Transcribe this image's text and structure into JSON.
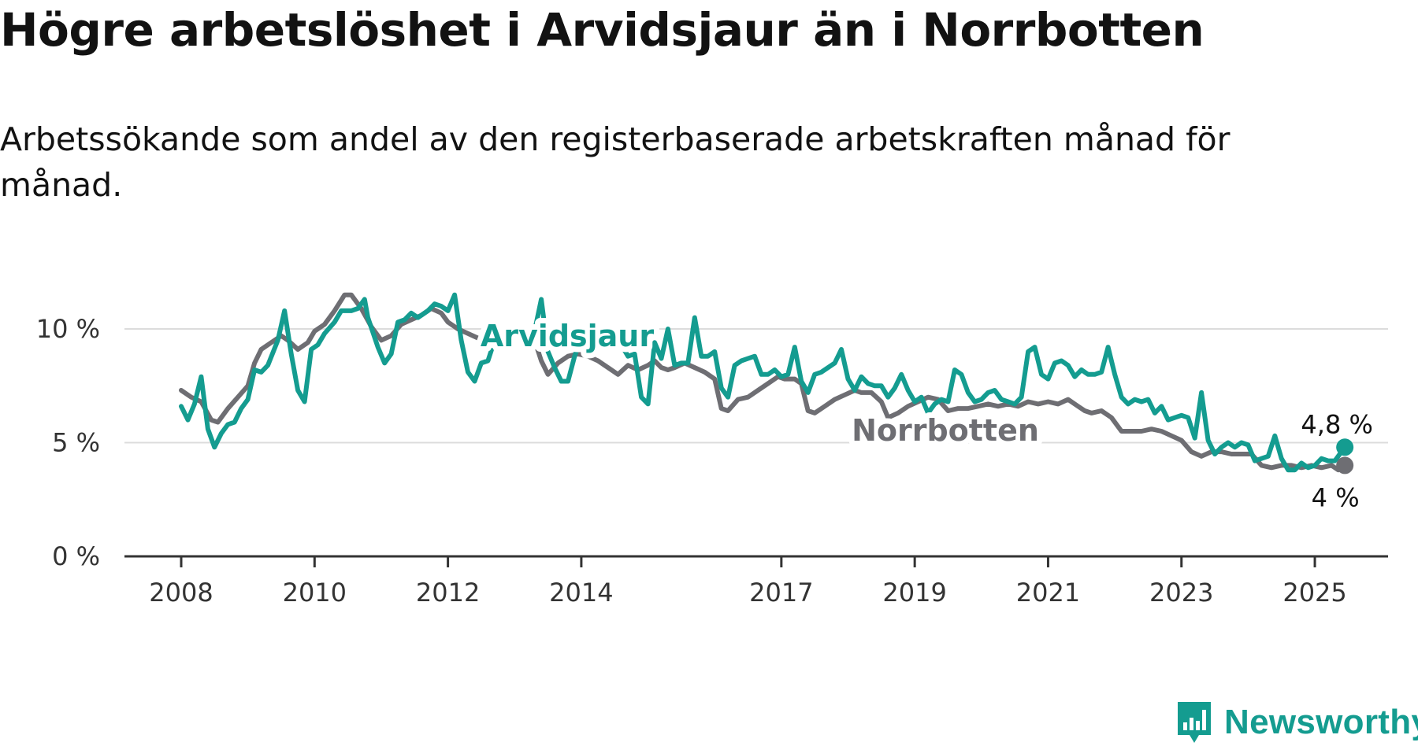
{
  "header": {
    "title": "Högre arbetslöshet i Arvidsjaur än i Norrbotten",
    "subtitle": "Arbetssökande som andel av den registerbaserade arbetskraften månad för månad."
  },
  "brand": {
    "logo_text": "Newsworthy",
    "color": "#149c90"
  },
  "chart_data": {
    "type": "line",
    "title": "Högre arbetslöshet i Arvidsjaur än i Norrbotten",
    "subtitle": "Arbetssökande som andel av den registerbaserade arbetskraften månad för månad.",
    "xlabel": "",
    "ylabel": "",
    "xlim": [
      2008,
      2025.5
    ],
    "ylim": [
      0,
      12
    ],
    "x_ticks": [
      2008,
      2010,
      2012,
      2014,
      2017,
      2019,
      2021,
      2023,
      2025
    ],
    "y_ticks": [
      0,
      5,
      10
    ],
    "y_tick_labels": [
      "0 %",
      "5 %",
      "10 %"
    ],
    "grid": true,
    "series": [
      {
        "name": "Arvidsjaur",
        "color": "#149c90",
        "end_label": "4,8 %",
        "points": [
          [
            2008.0,
            6.6
          ],
          [
            2008.1,
            6.0
          ],
          [
            2008.2,
            6.7
          ],
          [
            2008.3,
            7.9
          ],
          [
            2008.4,
            5.6
          ],
          [
            2008.5,
            4.8
          ],
          [
            2008.6,
            5.4
          ],
          [
            2008.7,
            5.8
          ],
          [
            2008.8,
            5.9
          ],
          [
            2008.9,
            6.5
          ],
          [
            2009.0,
            6.9
          ],
          [
            2009.1,
            8.2
          ],
          [
            2009.2,
            8.1
          ],
          [
            2009.3,
            8.4
          ],
          [
            2009.45,
            9.5
          ],
          [
            2009.55,
            10.8
          ],
          [
            2009.65,
            8.9
          ],
          [
            2009.75,
            7.3
          ],
          [
            2009.85,
            6.8
          ],
          [
            2009.95,
            9.1
          ],
          [
            2010.05,
            9.3
          ],
          [
            2010.15,
            9.8
          ],
          [
            2010.3,
            10.3
          ],
          [
            2010.4,
            10.8
          ],
          [
            2010.55,
            10.8
          ],
          [
            2010.65,
            10.9
          ],
          [
            2010.75,
            11.3
          ],
          [
            2010.8,
            10.5
          ],
          [
            2010.95,
            9.2
          ],
          [
            2011.05,
            8.5
          ],
          [
            2011.15,
            8.9
          ],
          [
            2011.25,
            10.3
          ],
          [
            2011.35,
            10.4
          ],
          [
            2011.45,
            10.7
          ],
          [
            2011.55,
            10.5
          ],
          [
            2011.7,
            10.8
          ],
          [
            2011.8,
            11.1
          ],
          [
            2011.9,
            11.0
          ],
          [
            2012.0,
            10.8
          ],
          [
            2012.1,
            11.5
          ],
          [
            2012.2,
            9.5
          ],
          [
            2012.3,
            8.1
          ],
          [
            2012.4,
            7.7
          ],
          [
            2012.5,
            8.5
          ],
          [
            2012.6,
            8.6
          ],
          [
            2012.7,
            9.5
          ],
          [
            2012.8,
            9.7
          ],
          [
            2012.9,
            9.9
          ],
          [
            2013.0,
            10.1
          ],
          [
            2013.1,
            9.8
          ],
          [
            2013.2,
            10.0
          ],
          [
            2013.3,
            9.9
          ],
          [
            2013.4,
            11.3
          ],
          [
            2013.5,
            9.0
          ],
          [
            2013.6,
            8.3
          ],
          [
            2013.7,
            7.7
          ],
          [
            2013.8,
            7.7
          ],
          [
            2013.9,
            8.8
          ],
          [
            2014.0,
            9.6
          ],
          [
            2014.1,
            9.0
          ],
          [
            2014.2,
            8.9
          ],
          [
            2014.3,
            9.5
          ],
          [
            2014.4,
            9.7
          ],
          [
            2014.5,
            10.0
          ],
          [
            2014.6,
            9.3
          ],
          [
            2014.7,
            8.8
          ],
          [
            2014.8,
            8.9
          ],
          [
            2014.9,
            7.0
          ],
          [
            2015.0,
            6.7
          ],
          [
            2015.1,
            9.4
          ],
          [
            2015.2,
            8.7
          ],
          [
            2015.3,
            10.0
          ],
          [
            2015.4,
            8.4
          ],
          [
            2015.5,
            8.5
          ],
          [
            2015.6,
            8.5
          ],
          [
            2015.7,
            10.5
          ],
          [
            2015.8,
            8.8
          ],
          [
            2015.9,
            8.8
          ],
          [
            2016.0,
            9.0
          ],
          [
            2016.1,
            7.4
          ],
          [
            2016.2,
            7.0
          ],
          [
            2016.3,
            8.4
          ],
          [
            2016.4,
            8.6
          ],
          [
            2016.5,
            8.7
          ],
          [
            2016.6,
            8.8
          ],
          [
            2016.7,
            8.0
          ],
          [
            2016.8,
            8.0
          ],
          [
            2016.9,
            8.2
          ],
          [
            2017.0,
            7.9
          ],
          [
            2017.1,
            8.0
          ],
          [
            2017.2,
            9.2
          ],
          [
            2017.3,
            7.7
          ],
          [
            2017.4,
            7.2
          ],
          [
            2017.5,
            8.0
          ],
          [
            2017.6,
            8.1
          ],
          [
            2017.7,
            8.3
          ],
          [
            2017.8,
            8.5
          ],
          [
            2017.9,
            9.1
          ],
          [
            2018.0,
            7.8
          ],
          [
            2018.1,
            7.3
          ],
          [
            2018.2,
            7.9
          ],
          [
            2018.3,
            7.6
          ],
          [
            2018.4,
            7.5
          ],
          [
            2018.5,
            7.5
          ],
          [
            2018.6,
            7.0
          ],
          [
            2018.7,
            7.4
          ],
          [
            2018.8,
            8.0
          ],
          [
            2018.9,
            7.3
          ],
          [
            2019.0,
            6.8
          ],
          [
            2019.1,
            7.0
          ],
          [
            2019.2,
            6.3
          ],
          [
            2019.3,
            6.7
          ],
          [
            2019.4,
            6.9
          ],
          [
            2019.5,
            6.8
          ],
          [
            2019.6,
            8.2
          ],
          [
            2019.7,
            8.0
          ],
          [
            2019.8,
            7.2
          ],
          [
            2019.9,
            6.8
          ],
          [
            2020.0,
            6.9
          ],
          [
            2020.1,
            7.2
          ],
          [
            2020.2,
            7.3
          ],
          [
            2020.3,
            6.9
          ],
          [
            2020.4,
            6.8
          ],
          [
            2020.5,
            6.7
          ],
          [
            2020.6,
            7.0
          ],
          [
            2020.7,
            9.0
          ],
          [
            2020.8,
            9.2
          ],
          [
            2020.9,
            8.0
          ],
          [
            2021.0,
            7.8
          ],
          [
            2021.1,
            8.5
          ],
          [
            2021.2,
            8.6
          ],
          [
            2021.3,
            8.4
          ],
          [
            2021.4,
            7.9
          ],
          [
            2021.5,
            8.2
          ],
          [
            2021.6,
            8.0
          ],
          [
            2021.7,
            8.0
          ],
          [
            2021.8,
            8.1
          ],
          [
            2021.9,
            9.2
          ],
          [
            2022.0,
            8.0
          ],
          [
            2022.1,
            7.0
          ],
          [
            2022.2,
            6.7
          ],
          [
            2022.3,
            6.9
          ],
          [
            2022.4,
            6.8
          ],
          [
            2022.5,
            6.9
          ],
          [
            2022.6,
            6.3
          ],
          [
            2022.7,
            6.6
          ],
          [
            2022.8,
            6.0
          ],
          [
            2022.9,
            6.1
          ],
          [
            2023.0,
            6.2
          ],
          [
            2023.1,
            6.1
          ],
          [
            2023.2,
            5.2
          ],
          [
            2023.3,
            7.2
          ],
          [
            2023.4,
            5.1
          ],
          [
            2023.5,
            4.5
          ],
          [
            2023.6,
            4.8
          ],
          [
            2023.7,
            5.0
          ],
          [
            2023.8,
            4.8
          ],
          [
            2023.9,
            5.0
          ],
          [
            2024.0,
            4.9
          ],
          [
            2024.1,
            4.2
          ],
          [
            2024.2,
            4.3
          ],
          [
            2024.3,
            4.4
          ],
          [
            2024.4,
            5.3
          ],
          [
            2024.5,
            4.3
          ],
          [
            2024.6,
            3.8
          ],
          [
            2024.7,
            3.8
          ],
          [
            2024.8,
            4.1
          ],
          [
            2024.9,
            3.9
          ],
          [
            2025.0,
            4.0
          ],
          [
            2025.1,
            4.3
          ],
          [
            2025.2,
            4.2
          ],
          [
            2025.3,
            4.2
          ],
          [
            2025.45,
            4.8
          ]
        ]
      },
      {
        "name": "Norrbotten",
        "color": "#6e6e73",
        "end_label": "4 %",
        "points": [
          [
            2008.0,
            7.3
          ],
          [
            2008.15,
            7.0
          ],
          [
            2008.3,
            6.8
          ],
          [
            2008.45,
            6.0
          ],
          [
            2008.55,
            5.9
          ],
          [
            2008.7,
            6.5
          ],
          [
            2008.85,
            7.0
          ],
          [
            2009.0,
            7.5
          ],
          [
            2009.1,
            8.5
          ],
          [
            2009.2,
            9.1
          ],
          [
            2009.35,
            9.4
          ],
          [
            2009.5,
            9.7
          ],
          [
            2009.6,
            9.5
          ],
          [
            2009.75,
            9.1
          ],
          [
            2009.9,
            9.4
          ],
          [
            2010.0,
            9.9
          ],
          [
            2010.15,
            10.2
          ],
          [
            2010.3,
            10.8
          ],
          [
            2010.45,
            11.5
          ],
          [
            2010.55,
            11.5
          ],
          [
            2010.7,
            10.9
          ],
          [
            2010.85,
            10.1
          ],
          [
            2011.0,
            9.5
          ],
          [
            2011.15,
            9.7
          ],
          [
            2011.3,
            10.2
          ],
          [
            2011.45,
            10.4
          ],
          [
            2011.6,
            10.6
          ],
          [
            2011.75,
            10.9
          ],
          [
            2011.9,
            10.7
          ],
          [
            2012.0,
            10.3
          ],
          [
            2012.15,
            10.0
          ],
          [
            2012.3,
            9.8
          ],
          [
            2012.45,
            9.6
          ],
          [
            2012.6,
            9.3
          ],
          [
            2012.75,
            9.8
          ],
          [
            2012.9,
            10.1
          ],
          [
            2013.0,
            10.0
          ],
          [
            2013.15,
            9.8
          ],
          [
            2013.3,
            9.5
          ],
          [
            2013.4,
            8.6
          ],
          [
            2013.5,
            8.0
          ],
          [
            2013.65,
            8.5
          ],
          [
            2013.8,
            8.8
          ],
          [
            2013.95,
            8.9
          ],
          [
            2014.1,
            8.8
          ],
          [
            2014.25,
            8.6
          ],
          [
            2014.4,
            8.3
          ],
          [
            2014.55,
            8.0
          ],
          [
            2014.7,
            8.4
          ],
          [
            2014.85,
            8.2
          ],
          [
            2015.0,
            8.4
          ],
          [
            2015.1,
            8.6
          ],
          [
            2015.2,
            8.3
          ],
          [
            2015.3,
            8.2
          ],
          [
            2015.4,
            8.3
          ],
          [
            2015.55,
            8.5
          ],
          [
            2015.7,
            8.3
          ],
          [
            2015.85,
            8.1
          ],
          [
            2016.0,
            7.8
          ],
          [
            2016.1,
            6.5
          ],
          [
            2016.2,
            6.4
          ],
          [
            2016.35,
            6.9
          ],
          [
            2016.5,
            7.0
          ],
          [
            2016.65,
            7.3
          ],
          [
            2016.8,
            7.6
          ],
          [
            2016.95,
            7.9
          ],
          [
            2017.05,
            7.8
          ],
          [
            2017.2,
            7.8
          ],
          [
            2017.3,
            7.6
          ],
          [
            2017.4,
            6.4
          ],
          [
            2017.5,
            6.3
          ],
          [
            2017.65,
            6.6
          ],
          [
            2017.8,
            6.9
          ],
          [
            2017.95,
            7.1
          ],
          [
            2018.1,
            7.3
          ],
          [
            2018.2,
            7.2
          ],
          [
            2018.35,
            7.2
          ],
          [
            2018.5,
            6.8
          ],
          [
            2018.6,
            6.1
          ],
          [
            2018.75,
            6.3
          ],
          [
            2018.9,
            6.6
          ],
          [
            2019.05,
            6.8
          ],
          [
            2019.2,
            7.0
          ],
          [
            2019.35,
            6.9
          ],
          [
            2019.5,
            6.4
          ],
          [
            2019.65,
            6.5
          ],
          [
            2019.8,
            6.5
          ],
          [
            2019.95,
            6.6
          ],
          [
            2020.1,
            6.7
          ],
          [
            2020.25,
            6.6
          ],
          [
            2020.4,
            6.7
          ],
          [
            2020.55,
            6.6
          ],
          [
            2020.7,
            6.8
          ],
          [
            2020.85,
            6.7
          ],
          [
            2021.0,
            6.8
          ],
          [
            2021.15,
            6.7
          ],
          [
            2021.3,
            6.9
          ],
          [
            2021.45,
            6.6
          ],
          [
            2021.55,
            6.4
          ],
          [
            2021.65,
            6.3
          ],
          [
            2021.8,
            6.4
          ],
          [
            2021.95,
            6.1
          ],
          [
            2022.1,
            5.5
          ],
          [
            2022.25,
            5.5
          ],
          [
            2022.4,
            5.5
          ],
          [
            2022.55,
            5.6
          ],
          [
            2022.7,
            5.5
          ],
          [
            2022.85,
            5.3
          ],
          [
            2023.0,
            5.1
          ],
          [
            2023.15,
            4.6
          ],
          [
            2023.3,
            4.4
          ],
          [
            2023.45,
            4.6
          ],
          [
            2023.6,
            4.6
          ],
          [
            2023.75,
            4.5
          ],
          [
            2023.9,
            4.5
          ],
          [
            2024.05,
            4.5
          ],
          [
            2024.2,
            4.0
          ],
          [
            2024.35,
            3.9
          ],
          [
            2024.5,
            4.0
          ],
          [
            2024.65,
            4.0
          ],
          [
            2024.8,
            3.9
          ],
          [
            2024.95,
            4.0
          ],
          [
            2025.1,
            3.9
          ],
          [
            2025.25,
            4.0
          ],
          [
            2025.35,
            3.8
          ],
          [
            2025.45,
            4.0
          ]
        ]
      }
    ]
  }
}
